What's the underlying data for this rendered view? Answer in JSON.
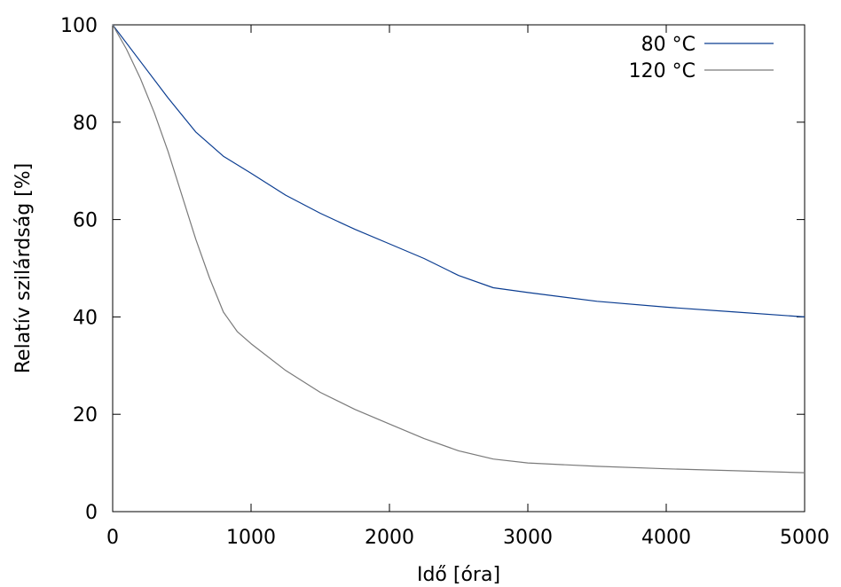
{
  "chart_data": {
    "type": "line",
    "xlabel": "Idő [óra]",
    "ylabel": "Relatív szilárdság [%]",
    "xlim": [
      0,
      5000
    ],
    "ylim": [
      0,
      100
    ],
    "xticks": [
      0,
      1000,
      2000,
      3000,
      4000,
      5000
    ],
    "yticks": [
      0,
      20,
      40,
      60,
      80,
      100
    ],
    "grid": false,
    "legend_position": "top-right",
    "series": [
      {
        "name": "80 °C",
        "color": "#0b3d91",
        "x": [
          0,
          200,
          400,
          600,
          800,
          1000,
          1250,
          1500,
          1750,
          2000,
          2250,
          2500,
          2750,
          3000,
          3500,
          4000,
          4500,
          5000
        ],
        "y": [
          100,
          92.5,
          85,
          78,
          73,
          69.5,
          65,
          61.3,
          58,
          55,
          52,
          48.5,
          46,
          45,
          43.2,
          42,
          41,
          40
        ]
      },
      {
        "name": "120 °C",
        "color": "#7a7a7a",
        "x": [
          0,
          100,
          200,
          300,
          400,
          500,
          600,
          700,
          800,
          900,
          1000,
          1250,
          1500,
          1750,
          2000,
          2250,
          2500,
          2750,
          3000,
          3500,
          4000,
          4500,
          5000
        ],
        "y": [
          100,
          95,
          89,
          82,
          74,
          65,
          56,
          48,
          41,
          37,
          34.5,
          29,
          24.5,
          21,
          18,
          15,
          12.5,
          10.8,
          10,
          9.3,
          8.8,
          8.4,
          8
        ]
      }
    ]
  }
}
